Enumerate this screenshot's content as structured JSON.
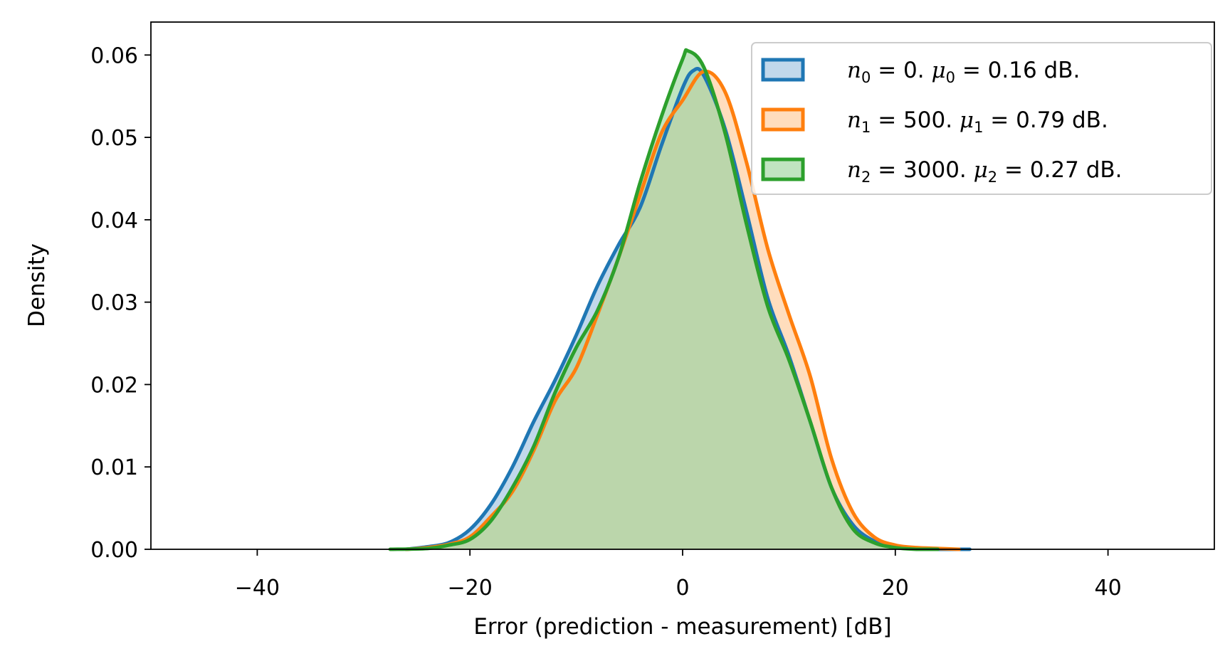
{
  "chart_data": {
    "type": "area",
    "xlabel": "Error (prediction - measurement) [dB]",
    "ylabel": "Density",
    "xlim": [
      -50,
      50
    ],
    "ylim": [
      0,
      0.064
    ],
    "xticks": [
      -40,
      -20,
      0,
      20,
      40
    ],
    "xtick_labels": [
      "−40",
      "−20",
      "0",
      "20",
      "40"
    ],
    "yticks": [
      0.0,
      0.01,
      0.02,
      0.03,
      0.04,
      0.05,
      0.06
    ],
    "ytick_labels": [
      "0.00",
      "0.01",
      "0.02",
      "0.03",
      "0.04",
      "0.05",
      "0.06"
    ],
    "grid": false,
    "legend_position": "top-right",
    "series": [
      {
        "name": "n0 = 0. μ0 = 0.16 dB.",
        "legend": {
          "var": "n",
          "sub": "0",
          "n_value": "0",
          "mu": "μ",
          "mu_value": "0.16",
          "unit": "dB."
        },
        "color": "#1f77b4",
        "fill": "#a6c8e2",
        "x": [
          -26,
          -24,
          -22,
          -20,
          -18,
          -16,
          -14,
          -12,
          -10,
          -8,
          -6,
          -4,
          -2,
          0,
          1,
          2,
          4,
          6,
          8,
          10,
          12,
          14,
          16,
          18,
          20,
          22,
          24,
          26,
          27
        ],
        "y": [
          0.0,
          0.0003,
          0.0008,
          0.0024,
          0.0055,
          0.01,
          0.0155,
          0.0205,
          0.026,
          0.032,
          0.037,
          0.0415,
          0.049,
          0.056,
          0.0581,
          0.0575,
          0.051,
          0.041,
          0.0305,
          0.0235,
          0.0155,
          0.0075,
          0.003,
          0.001,
          0.0003,
          0.0001,
          0.0,
          0.0,
          0.0
        ]
      },
      {
        "name": "n1 = 500. μ1 = 0.79 dB.",
        "legend": {
          "var": "n",
          "sub": "1",
          "n_value": "500",
          "mu": "μ",
          "mu_value": "0.79",
          "unit": "dB."
        },
        "color": "#ff7f0e",
        "fill": "#ffcfa1",
        "x": [
          -26,
          -24,
          -22,
          -20,
          -18,
          -16,
          -14,
          -12,
          -10,
          -8,
          -6,
          -4,
          -2,
          0,
          2,
          4,
          6,
          8,
          10,
          12,
          14,
          16,
          18,
          20,
          22,
          24,
          26
        ],
        "y": [
          0.0,
          0.0002,
          0.0006,
          0.0015,
          0.004,
          0.007,
          0.012,
          0.018,
          0.022,
          0.0285,
          0.0355,
          0.043,
          0.0505,
          0.0545,
          0.058,
          0.0555,
          0.047,
          0.0365,
          0.0285,
          0.021,
          0.011,
          0.0045,
          0.0015,
          0.0005,
          0.0002,
          0.0001,
          0.0
        ]
      },
      {
        "name": "n2 = 3000. μ2 = 0.27 dB.",
        "legend": {
          "var": "n",
          "sub": "2",
          "n_value": "3000",
          "mu": "μ",
          "mu_value": "0.27",
          "unit": "dB."
        },
        "color": "#2ca02c",
        "fill": "#a5d8a5",
        "x": [
          -27.5,
          -24,
          -22,
          -20,
          -18,
          -16,
          -14,
          -12,
          -10,
          -8,
          -6,
          -4,
          -2,
          0,
          0.5,
          2,
          4,
          6,
          8,
          10,
          12,
          14,
          16,
          18,
          20,
          22,
          24
        ],
        "y": [
          0.0,
          0.0001,
          0.0005,
          0.0012,
          0.0035,
          0.0075,
          0.0125,
          0.019,
          0.0245,
          0.029,
          0.0355,
          0.0445,
          0.0525,
          0.0595,
          0.0605,
          0.0585,
          0.0505,
          0.0395,
          0.0295,
          0.023,
          0.0155,
          0.0075,
          0.0025,
          0.0008,
          0.0002,
          0.0,
          0.0
        ]
      }
    ]
  }
}
